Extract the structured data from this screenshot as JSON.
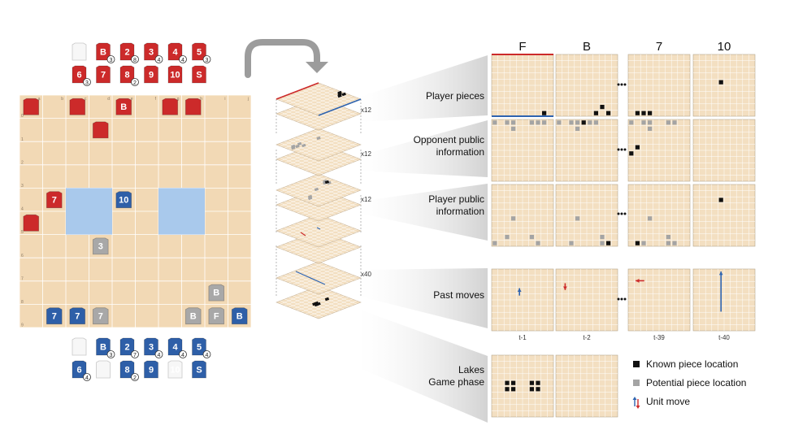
{
  "board": {
    "col_labels": [
      "a",
      "b",
      "c",
      "d",
      "e",
      "f",
      "g",
      "h",
      "i",
      "j"
    ],
    "row_labels": [
      "0",
      "1",
      "2",
      "3",
      "4",
      "5",
      "6",
      "7",
      "8",
      "9"
    ],
    "pieces": [
      {
        "label": "",
        "side": "red",
        "col": 0,
        "row": 0
      },
      {
        "label": "",
        "side": "red",
        "col": 2,
        "row": 0
      },
      {
        "label": "B",
        "side": "red",
        "col": 4,
        "row": 0
      },
      {
        "label": "",
        "side": "red",
        "col": 6,
        "row": 0
      },
      {
        "label": "",
        "side": "red",
        "col": 7,
        "row": 0
      },
      {
        "label": "",
        "side": "red",
        "col": 3,
        "row": 1
      },
      {
        "label": "7",
        "side": "red",
        "col": 1,
        "row": 4
      },
      {
        "label": "10",
        "side": "blue",
        "col": 4,
        "row": 4
      },
      {
        "label": "",
        "side": "red",
        "col": 0,
        "row": 5
      },
      {
        "label": "3",
        "side": "gray",
        "col": 3,
        "row": 6
      },
      {
        "label": "B",
        "side": "gray",
        "col": 8,
        "row": 8
      },
      {
        "label": "7",
        "side": "blue",
        "col": 1,
        "row": 9
      },
      {
        "label": "7",
        "side": "blue",
        "col": 2,
        "row": 9
      },
      {
        "label": "7",
        "side": "gray",
        "col": 3,
        "row": 9
      },
      {
        "label": "B",
        "side": "gray",
        "col": 7,
        "row": 9
      },
      {
        "label": "F",
        "side": "gray",
        "col": 8,
        "row": 9
      },
      {
        "label": "B",
        "side": "blue",
        "col": 9,
        "row": 9
      }
    ]
  },
  "captured_top": [
    {
      "label": "",
      "side": "white",
      "badge": ""
    },
    {
      "label": "B",
      "side": "red",
      "badge": "3"
    },
    {
      "label": "2",
      "side": "red",
      "badge": "8"
    },
    {
      "label": "3",
      "side": "red",
      "badge": "4"
    },
    {
      "label": "4",
      "side": "red",
      "badge": "4"
    },
    {
      "label": "5",
      "side": "red",
      "badge": "3"
    },
    {
      "label": "6",
      "side": "red",
      "badge": "3"
    },
    {
      "label": "7",
      "side": "red",
      "badge": ""
    },
    {
      "label": "8",
      "side": "red",
      "badge": "2"
    },
    {
      "label": "9",
      "side": "red",
      "badge": ""
    },
    {
      "label": "10",
      "side": "red",
      "badge": ""
    },
    {
      "label": "S",
      "side": "red",
      "badge": ""
    }
  ],
  "captured_bottom": [
    {
      "label": "",
      "side": "white",
      "badge": ""
    },
    {
      "label": "B",
      "side": "blue",
      "badge": "3"
    },
    {
      "label": "2",
      "side": "blue",
      "badge": "7"
    },
    {
      "label": "3",
      "side": "blue",
      "badge": "4"
    },
    {
      "label": "4",
      "side": "blue",
      "badge": "4"
    },
    {
      "label": "5",
      "side": "blue",
      "badge": "4"
    },
    {
      "label": "6",
      "side": "blue",
      "badge": "4"
    },
    {
      "label": "",
      "side": "white",
      "badge": ""
    },
    {
      "label": "8",
      "side": "blue",
      "badge": "2"
    },
    {
      "label": "9",
      "side": "blue",
      "badge": ""
    },
    {
      "label": "10",
      "side": "white",
      "badge": ""
    },
    {
      "label": "S",
      "side": "blue",
      "badge": ""
    }
  ],
  "stack": {
    "multipliers": [
      "x12",
      "x12",
      "x12",
      "x40"
    ]
  },
  "columns": [
    "F",
    "B",
    "7",
    "10"
  ],
  "rows": [
    {
      "label": "Player pieces"
    },
    {
      "label": "Opponent public\ninformation"
    },
    {
      "label": "Player public\ninformation"
    },
    {
      "label": "Past moves"
    },
    {
      "label": "Lakes\nGame phase"
    }
  ],
  "time_labels": [
    "t-1",
    "t-2",
    "t-39",
    "t-40"
  ],
  "legend": [
    {
      "label": "Known piece location",
      "icon": "black-square"
    },
    {
      "label": "Potential piece location",
      "icon": "gray-square"
    },
    {
      "label": "Unit move",
      "icon": "move-arrows"
    }
  ],
  "colors": {
    "board": "#f2d9b5",
    "grid_line": "#ffffff",
    "lake": "#a9c9ec",
    "red_piece": "#cc2a2a",
    "blue_piece": "#2e5fa8",
    "gray_piece": "#a8a8a8",
    "known": "#111111",
    "potential": "#a4a4a4",
    "move_blue": "#2f64b0",
    "move_red": "#cc2a2a",
    "panel": "#f3dfc1"
  }
}
